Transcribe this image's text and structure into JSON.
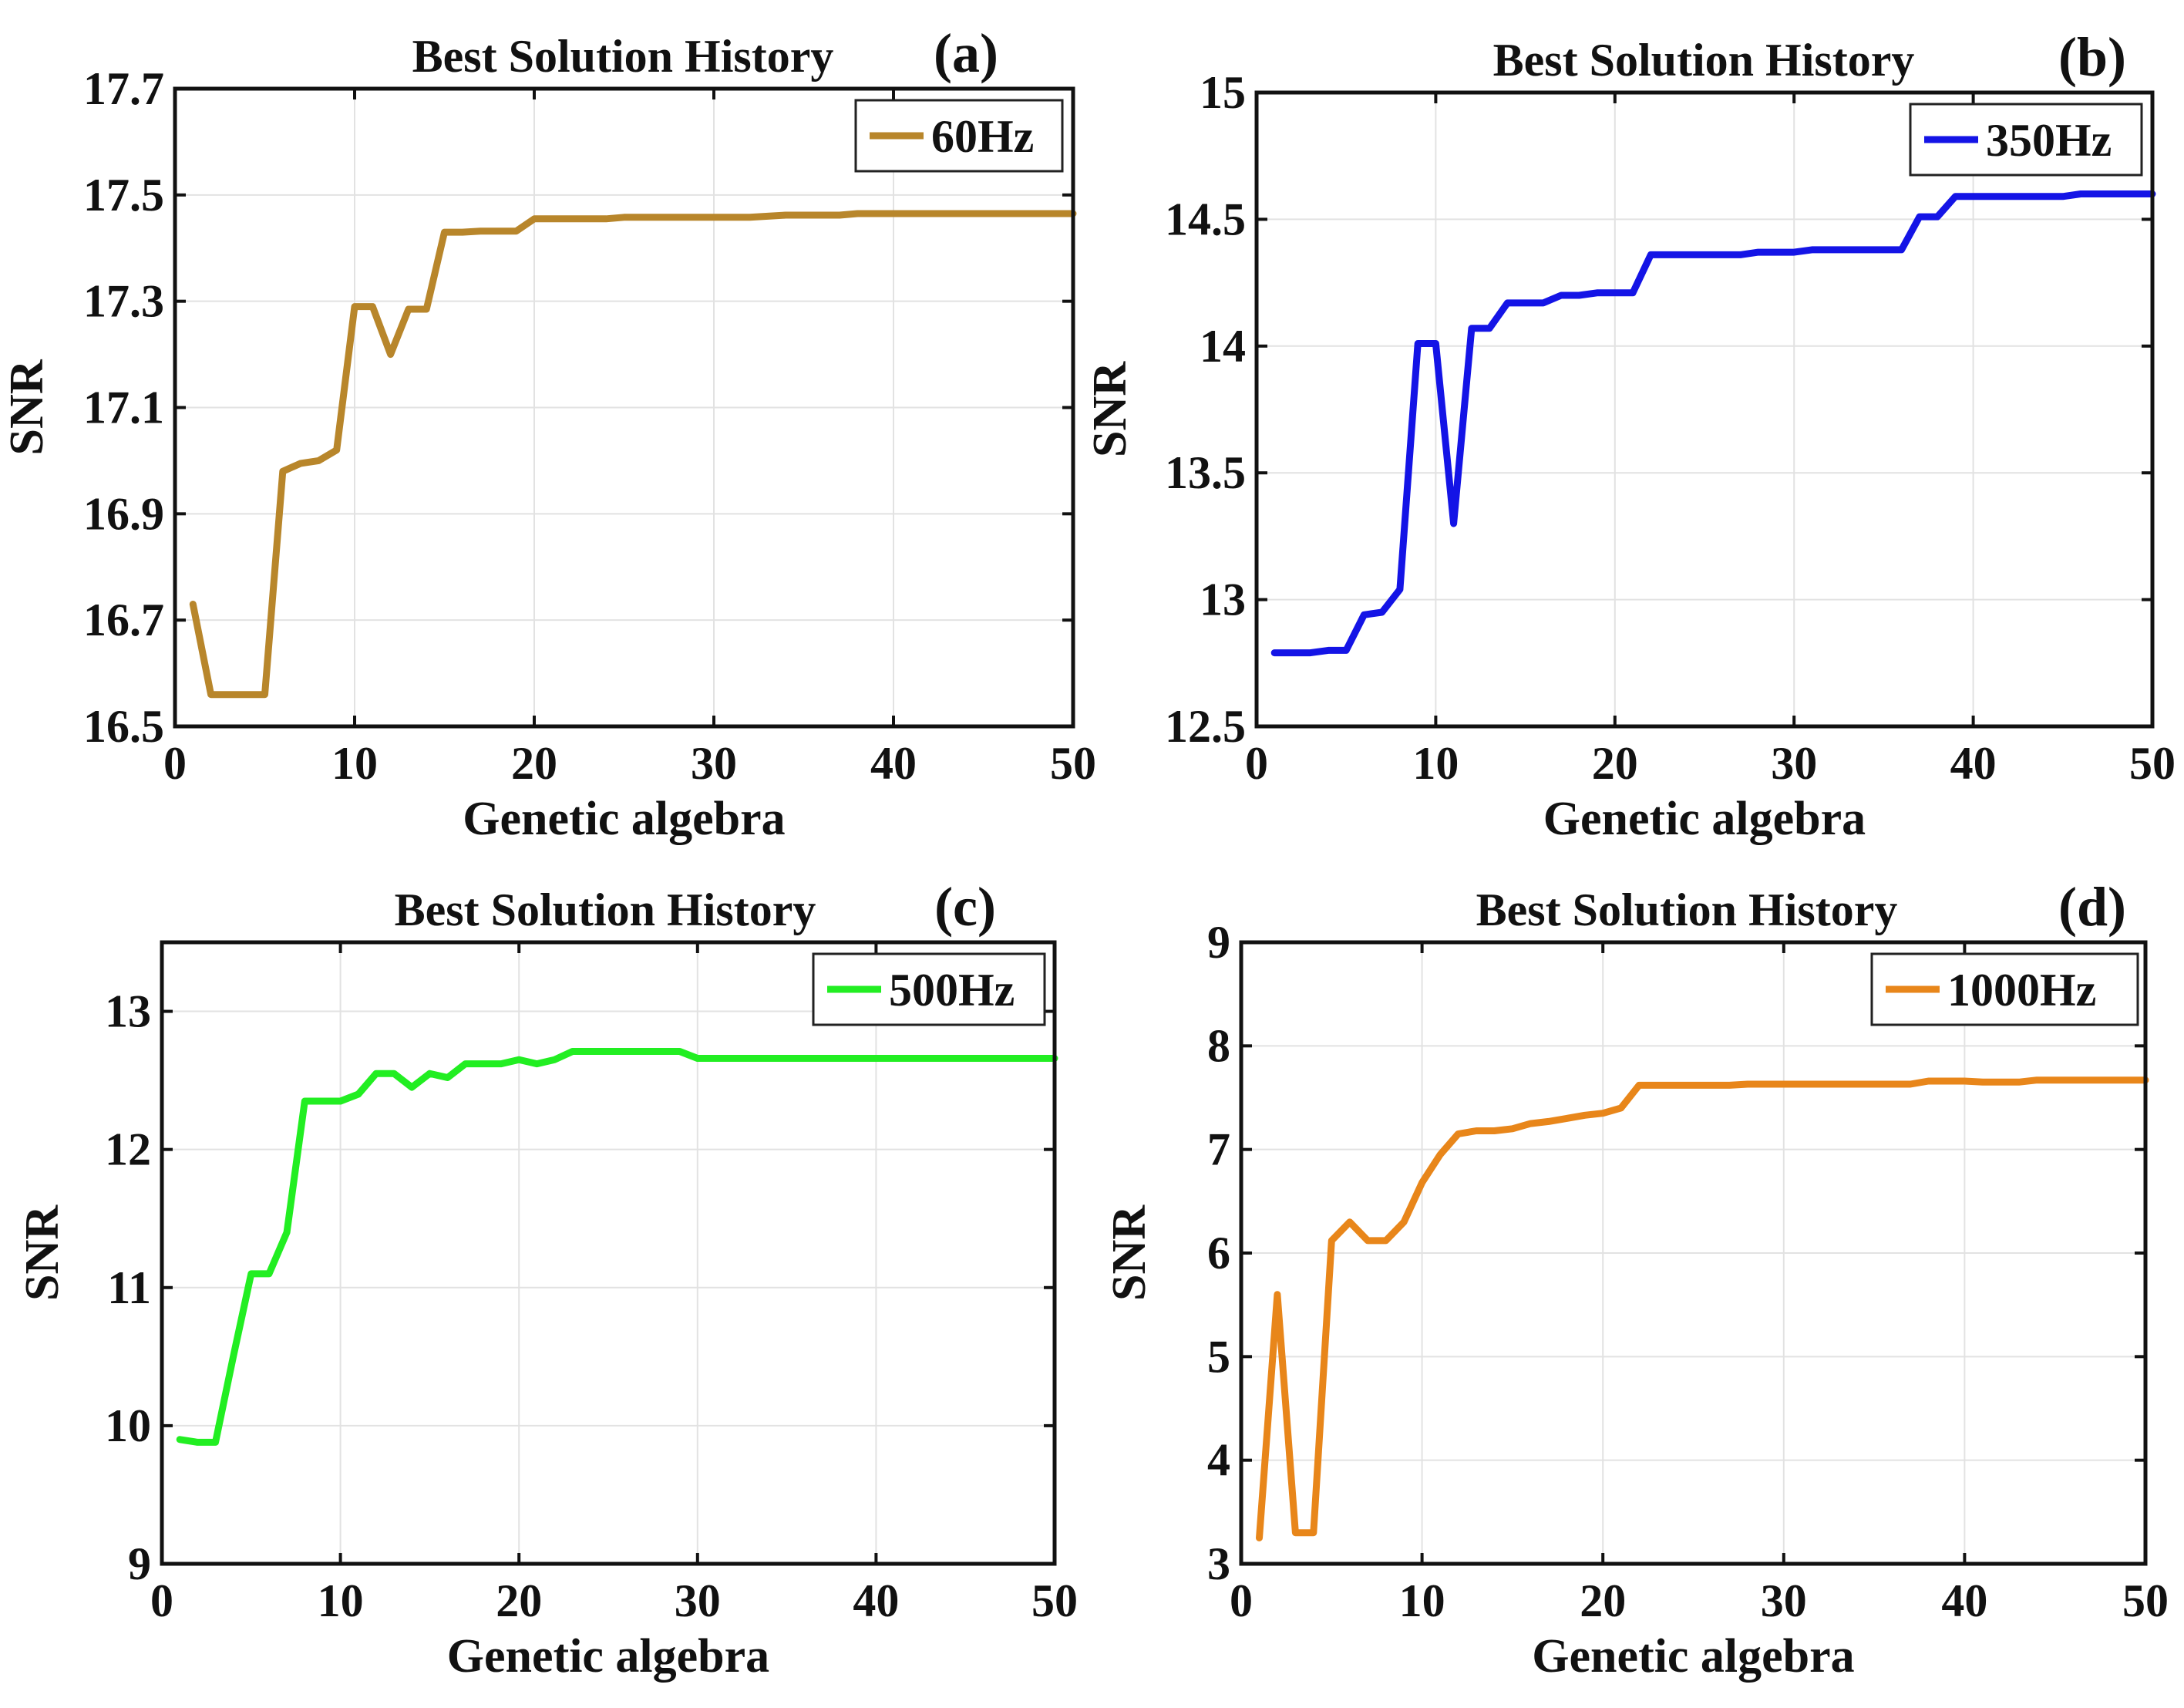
{
  "chart_data": [
    {
      "type": "line",
      "panel_label": "(a)",
      "title": "Best Solution History",
      "xlabel": "Genetic algebra",
      "ylabel": "SNR",
      "xlim": [
        0,
        50
      ],
      "ylim": [
        16.5,
        17.7
      ],
      "xticks": [
        "0",
        "10",
        "20",
        "30",
        "40",
        "50"
      ],
      "yticks": [
        "16.5",
        "16.7",
        "16.9",
        "17.1",
        "17.3",
        "17.5",
        "17.7"
      ],
      "grid": true,
      "legend_position": "top-right",
      "series": [
        {
          "name": "60Hz",
          "color": "#B8862B",
          "x": [
            1,
            2,
            3,
            4,
            5,
            6,
            7,
            8,
            9,
            10,
            11,
            12,
            13,
            14,
            15,
            16,
            17,
            18,
            19,
            20,
            21,
            22,
            23,
            24,
            25,
            26,
            27,
            28,
            29,
            30,
            31,
            32,
            33,
            34,
            35,
            36,
            37,
            38,
            39,
            40,
            41,
            42,
            43,
            44,
            45,
            46,
            47,
            48,
            49,
            50
          ],
          "y": [
            16.73,
            16.56,
            16.56,
            16.56,
            16.56,
            16.98,
            16.995,
            17.0,
            17.02,
            17.29,
            17.29,
            17.2,
            17.285,
            17.285,
            17.43,
            17.43,
            17.432,
            17.432,
            17.432,
            17.455,
            17.455,
            17.455,
            17.455,
            17.455,
            17.458,
            17.458,
            17.458,
            17.458,
            17.458,
            17.458,
            17.458,
            17.458,
            17.46,
            17.462,
            17.462,
            17.462,
            17.462,
            17.465,
            17.465,
            17.465,
            17.465,
            17.465,
            17.465,
            17.465,
            17.465,
            17.465,
            17.465,
            17.465,
            17.465,
            17.465
          ]
        }
      ]
    },
    {
      "type": "line",
      "panel_label": "(b)",
      "title": "Best Solution History",
      "xlabel": "Genetic algebra",
      "ylabel": "SNR",
      "xlim": [
        0,
        50
      ],
      "ylim": [
        12.5,
        15
      ],
      "xticks": [
        "0",
        "10",
        "20",
        "30",
        "40",
        "50"
      ],
      "yticks": [
        "12.5",
        "13",
        "13.5",
        "14",
        "14.5",
        "15"
      ],
      "grid": true,
      "legend_position": "top-right",
      "series": [
        {
          "name": "350Hz",
          "color": "#1414E6",
          "x": [
            1,
            2,
            3,
            4,
            5,
            6,
            7,
            8,
            9,
            10,
            11,
            12,
            13,
            14,
            15,
            16,
            17,
            18,
            19,
            20,
            21,
            22,
            23,
            24,
            25,
            26,
            27,
            28,
            29,
            30,
            31,
            32,
            33,
            34,
            35,
            36,
            37,
            38,
            39,
            40,
            41,
            42,
            43,
            44,
            45,
            46,
            47,
            48,
            49,
            50
          ],
          "y": [
            12.79,
            12.79,
            12.79,
            12.8,
            12.8,
            12.94,
            12.95,
            13.04,
            14.01,
            14.01,
            13.3,
            14.07,
            14.07,
            14.17,
            14.17,
            14.17,
            14.2,
            14.2,
            14.21,
            14.21,
            14.21,
            14.36,
            14.36,
            14.36,
            14.36,
            14.36,
            14.36,
            14.37,
            14.37,
            14.37,
            14.38,
            14.38,
            14.38,
            14.38,
            14.38,
            14.38,
            14.51,
            14.51,
            14.59,
            14.59,
            14.59,
            14.59,
            14.59,
            14.59,
            14.59,
            14.6,
            14.6,
            14.6,
            14.6,
            14.6
          ]
        }
      ]
    },
    {
      "type": "line",
      "panel_label": "(c)",
      "title": "Best Solution History",
      "xlabel": "Genetic algebra",
      "ylabel": "SNR",
      "xlim": [
        0,
        50
      ],
      "ylim": [
        9,
        13.5
      ],
      "xticks": [
        "0",
        "10",
        "20",
        "30",
        "40",
        "50"
      ],
      "yticks": [
        "9",
        "10",
        "11",
        "12",
        "13"
      ],
      "grid": true,
      "legend_position": "top-right",
      "series": [
        {
          "name": "500Hz",
          "color": "#22EE22",
          "x": [
            1,
            2,
            3,
            4,
            5,
            6,
            7,
            8,
            9,
            10,
            11,
            12,
            13,
            14,
            15,
            16,
            17,
            18,
            19,
            20,
            21,
            22,
            23,
            24,
            25,
            26,
            27,
            28,
            29,
            30,
            31,
            32,
            33,
            34,
            35,
            36,
            37,
            38,
            39,
            40,
            41,
            42,
            43,
            44,
            45,
            46,
            47,
            48,
            49,
            50
          ],
          "y": [
            9.9,
            9.88,
            9.88,
            10.5,
            11.1,
            11.1,
            11.4,
            12.35,
            12.35,
            12.35,
            12.4,
            12.55,
            12.55,
            12.45,
            12.55,
            12.52,
            12.62,
            12.62,
            12.62,
            12.65,
            12.62,
            12.65,
            12.71,
            12.71,
            12.71,
            12.71,
            12.71,
            12.71,
            12.71,
            12.66,
            12.66,
            12.66,
            12.66,
            12.66,
            12.66,
            12.66,
            12.66,
            12.66,
            12.66,
            12.66,
            12.66,
            12.66,
            12.66,
            12.66,
            12.66,
            12.66,
            12.66,
            12.66,
            12.66,
            12.66
          ]
        }
      ]
    },
    {
      "type": "line",
      "panel_label": "(d)",
      "title": "Best Solution History",
      "xlabel": "Genetic algebra",
      "ylabel": "SNR",
      "xlim": [
        0,
        50
      ],
      "ylim": [
        3,
        9
      ],
      "xticks": [
        "0",
        "10",
        "20",
        "30",
        "40",
        "50"
      ],
      "yticks": [
        "3",
        "4",
        "5",
        "6",
        "7",
        "8",
        "9"
      ],
      "grid": true,
      "legend_position": "top-right",
      "series": [
        {
          "name": "1000Hz",
          "color": "#E8861A",
          "x": [
            1,
            2,
            3,
            4,
            5,
            6,
            7,
            8,
            9,
            10,
            11,
            12,
            13,
            14,
            15,
            16,
            17,
            18,
            19,
            20,
            21,
            22,
            23,
            24,
            25,
            26,
            27,
            28,
            29,
            30,
            31,
            32,
            33,
            34,
            35,
            36,
            37,
            38,
            39,
            40,
            41,
            42,
            43,
            44,
            45,
            46,
            47,
            48,
            49,
            50
          ],
          "y": [
            3.25,
            5.6,
            3.3,
            3.3,
            6.12,
            6.3,
            6.12,
            6.12,
            6.3,
            6.68,
            6.95,
            7.15,
            7.18,
            7.18,
            7.2,
            7.25,
            7.27,
            7.3,
            7.33,
            7.35,
            7.4,
            7.62,
            7.62,
            7.62,
            7.62,
            7.62,
            7.62,
            7.63,
            7.63,
            7.63,
            7.63,
            7.63,
            7.63,
            7.63,
            7.63,
            7.63,
            7.63,
            7.66,
            7.66,
            7.66,
            7.65,
            7.65,
            7.65,
            7.67,
            7.67,
            7.67,
            7.67,
            7.67,
            7.67,
            7.67
          ]
        }
      ]
    }
  ]
}
